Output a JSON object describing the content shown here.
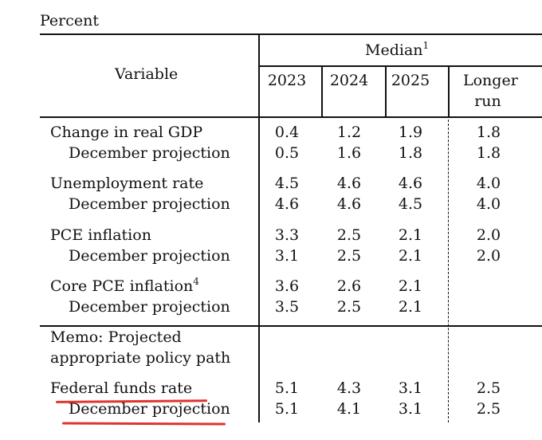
{
  "unit_label": "Percent",
  "header": {
    "variable": "Variable",
    "median": "Median",
    "median_note": "1",
    "years": [
      "2023",
      "2024",
      "2025"
    ],
    "longer_run_line1": "Longer",
    "longer_run_line2": "run"
  },
  "rows": [
    {
      "label": "Change in real GDP",
      "note": "",
      "values": [
        "0.4",
        "1.2",
        "1.9",
        "1.8"
      ]
    },
    {
      "label": "December projection",
      "note": "",
      "values": [
        "0.5",
        "1.6",
        "1.8",
        "1.8"
      ]
    },
    {
      "label": "Unemployment rate",
      "note": "",
      "values": [
        "4.5",
        "4.6",
        "4.6",
        "4.0"
      ]
    },
    {
      "label": "December projection",
      "note": "",
      "values": [
        "4.6",
        "4.6",
        "4.5",
        "4.0"
      ]
    },
    {
      "label": "PCE inflation",
      "note": "",
      "values": [
        "3.3",
        "2.5",
        "2.1",
        "2.0"
      ]
    },
    {
      "label": "December projection",
      "note": "",
      "values": [
        "3.1",
        "2.5",
        "2.1",
        "2.0"
      ]
    },
    {
      "label": "Core PCE inflation",
      "note": "4",
      "values": [
        "3.6",
        "2.6",
        "2.1",
        ""
      ]
    },
    {
      "label": "December projection",
      "note": "",
      "values": [
        "3.5",
        "2.5",
        "2.1",
        ""
      ]
    }
  ],
  "memo": {
    "line1": "Memo: Projected",
    "line2": "appropriate policy path"
  },
  "memo_rows": [
    {
      "label": "Federal funds rate",
      "values": [
        "5.1",
        "4.3",
        "3.1",
        "2.5"
      ]
    },
    {
      "label": "December projection",
      "values": [
        "5.1",
        "4.1",
        "3.1",
        "2.5"
      ]
    }
  ],
  "highlight_color": "#e0342d"
}
